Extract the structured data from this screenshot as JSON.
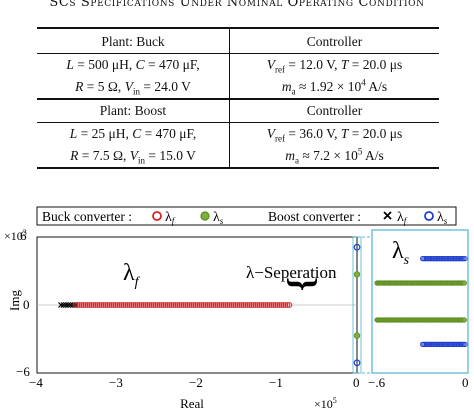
{
  "caption": "SCs Specifications Under Nominal Operating Condition",
  "table": {
    "buck": {
      "plant_header": "Plant: Buck",
      "controller_header": "Controller",
      "plant_row1": {
        "L_lbl": "L",
        "L_val": " = 500 μH, ",
        "C_lbl": "C",
        "C_val": " = 470 μF,"
      },
      "plant_row2": {
        "R_lbl": "R",
        "R_val": " = 5 Ω, ",
        "V_lbl": "V",
        "V_sub": "in",
        "V_val": " = 24.0 V"
      },
      "ctrl_row1": {
        "V_lbl": "V",
        "V_sub": "ref",
        "V_val": " = 12.0 V, ",
        "T_lbl": "T",
        "T_val": " = 20.0 μs"
      },
      "ctrl_row2": {
        "m_lbl": "m",
        "m_sub": "a",
        "m_val": " ≈ 1.92 × 10",
        "m_exp": "4",
        "m_unit": " A/s"
      }
    },
    "boost": {
      "plant_header": "Plant: Boost",
      "controller_header": "Controller",
      "plant_row1": {
        "L_lbl": "L",
        "L_val": " = 25 μH, ",
        "C_lbl": "C",
        "C_val": " = 470 μF,"
      },
      "plant_row2": {
        "R_lbl": "R",
        "R_val": " = 7.5 Ω, ",
        "V_lbl": "V",
        "V_sub": "in",
        "V_val": " = 15.0 V"
      },
      "ctrl_row1": {
        "V_lbl": "V",
        "V_sub": "ref",
        "V_val": " = 36.0 V, ",
        "T_lbl": "T",
        "T_val": " = 20.0 μs"
      },
      "ctrl_row2": {
        "m_lbl": "m",
        "m_sub": "a",
        "m_val": " ≈ 7.2 × 10",
        "m_exp": "5",
        "m_unit": " A/s"
      }
    }
  },
  "chart_data": {
    "type": "scatter",
    "xlabel": "Real",
    "ylabel": "Img",
    "x_exponent": "×10",
    "x_exponent_power": "5",
    "y_exponent": "×10",
    "y_exponent_power": "3",
    "xlim": [
      -4,
      0
    ],
    "ylim": [
      -6,
      6
    ],
    "x_ticks": [
      "−4",
      "−3",
      "−2",
      "−1",
      "0"
    ],
    "y_ticks": [
      "6",
      "0",
      "−6"
    ],
    "inset_x_ticks": [
      "−.6",
      "0"
    ],
    "legend": {
      "buck_label": "Buck converter :",
      "boost_label": "Boost converter :",
      "lambda_f": "λ",
      "lambda_f_sub": "f",
      "lambda_s": "λ",
      "lambda_s_sub": "s"
    },
    "annotations": {
      "lambda_f": "λ",
      "lambda_f_sub": "f",
      "separation": "λ−Seperation",
      "lambda_s": "λ",
      "lambda_s_sub": "s"
    },
    "series": [
      {
        "name": "Buck converter λf",
        "color": "#d62728",
        "marker": "circle-open",
        "x_range": [
          -3.52,
          -0.84
        ],
        "y": 0
      },
      {
        "name": "Buck converter λs",
        "color": "#7fb03a",
        "marker": "circle-filled",
        "points": [
          [
            0,
            2.7
          ],
          [
            0,
            -2.7
          ]
        ]
      },
      {
        "name": "Boost converter λf",
        "color": "#000000",
        "marker": "cross",
        "x_range": [
          -3.7,
          -3.52
        ],
        "y": 0
      },
      {
        "name": "Boost converter λs",
        "color": "#1f3fcf",
        "marker": "circle-open",
        "points": [
          [
            0,
            5.1
          ],
          [
            0,
            -5.1
          ]
        ]
      }
    ],
    "inset": {
      "xlim": [
        -0.6,
        0
      ],
      "ylim": [
        -6,
        6
      ],
      "rows": [
        {
          "y": 3.6,
          "x_range": [
            -0.28,
            0
          ],
          "color": "#1f3fcf"
        },
        {
          "y": 1.55,
          "x_range": [
            -0.58,
            0
          ],
          "color": "#7fb03a"
        },
        {
          "y": -1.55,
          "x_range": [
            -0.58,
            0
          ],
          "color": "#7fb03a"
        },
        {
          "y": -3.6,
          "x_range": [
            -0.28,
            0
          ],
          "color": "#1f3fcf"
        }
      ]
    }
  }
}
